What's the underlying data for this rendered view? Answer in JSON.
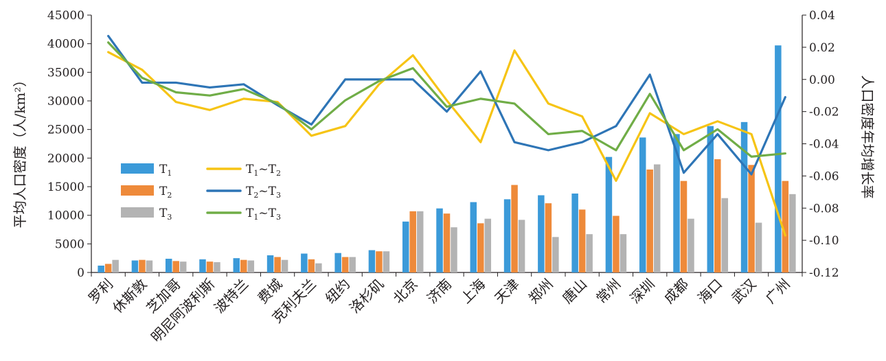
{
  "chart_data": {
    "type": "bar",
    "categories": [
      "罗利",
      "休斯敦",
      "芝加哥",
      "明尼阿波利斯",
      "波特兰",
      "费城",
      "克利夫兰",
      "纽约",
      "洛杉矶",
      "北京",
      "济南",
      "上海",
      "天津",
      "郑州",
      "唐山",
      "常州",
      "深圳",
      "成都",
      "海口",
      "武汉",
      "广州"
    ],
    "bar_series": [
      {
        "name": "T1",
        "color": "#3b9ad9",
        "values": [
          1200,
          2100,
          2400,
          2300,
          2500,
          3000,
          3300,
          3400,
          3900,
          8900,
          11200,
          12300,
          12800,
          13500,
          13800,
          20200,
          23600,
          24200,
          25600,
          26300,
          39700
        ]
      },
      {
        "name": "T2",
        "color": "#ee8a3a",
        "values": [
          1500,
          2200,
          2000,
          1900,
          2200,
          2700,
          2300,
          2700,
          3700,
          10700,
          10300,
          8600,
          15300,
          12100,
          11000,
          9900,
          18000,
          16000,
          19800,
          18800,
          16000
        ]
      },
      {
        "name": "T3",
        "color": "#b3b3b3",
        "values": [
          2200,
          2100,
          1900,
          1800,
          2100,
          2200,
          1600,
          2700,
          3700,
          10700,
          7900,
          9400,
          9200,
          6200,
          6700,
          6700,
          18900,
          9400,
          13000,
          8700,
          13700
        ]
      }
    ],
    "line_series": [
      {
        "name": "T1~T2",
        "color": "#f6c415",
        "values": [
          0.017,
          0.006,
          -0.014,
          -0.019,
          -0.012,
          -0.014,
          -0.035,
          -0.029,
          -0.003,
          0.015,
          -0.013,
          -0.039,
          0.018,
          -0.015,
          -0.023,
          -0.063,
          -0.021,
          -0.034,
          -0.026,
          -0.034,
          -0.097
        ]
      },
      {
        "name": "T2~T3",
        "color": "#2e75b6",
        "values": [
          0.027,
          -0.002,
          -0.002,
          -0.005,
          -0.003,
          -0.016,
          -0.028,
          0,
          0,
          0,
          -0.02,
          0.005,
          -0.039,
          -0.044,
          -0.039,
          -0.029,
          0.003,
          -0.058,
          -0.034,
          -0.059,
          -0.011
        ]
      },
      {
        "name": "T1~T3",
        "color": "#70ad47",
        "values": [
          0.023,
          0.001,
          -0.008,
          -0.01,
          -0.006,
          -0.015,
          -0.031,
          -0.013,
          -0.001,
          0.007,
          -0.017,
          -0.012,
          -0.015,
          -0.034,
          -0.032,
          -0.044,
          -0.009,
          -0.044,
          -0.031,
          -0.048,
          -0.046
        ]
      }
    ],
    "legend": [
      {
        "base": "T",
        "sub": "1",
        "mid": "",
        "base2": "",
        "sub2": "",
        "color": "#3b9ad9",
        "kind": "bar"
      },
      {
        "base": "T",
        "sub": "1",
        "mid": "~T",
        "base2": "",
        "sub2": "2",
        "color": "#f6c415",
        "kind": "line"
      },
      {
        "base": "T",
        "sub": "2",
        "mid": "",
        "base2": "",
        "sub2": "",
        "color": "#ee8a3a",
        "kind": "bar"
      },
      {
        "base": "T",
        "sub": "2",
        "mid": "~T",
        "base2": "",
        "sub2": "3",
        "color": "#2e75b6",
        "kind": "line"
      },
      {
        "base": "T",
        "sub": "3",
        "mid": "",
        "base2": "",
        "sub2": "",
        "color": "#b3b3b3",
        "kind": "bar"
      },
      {
        "base": "T",
        "sub": "1",
        "mid": "~T",
        "base2": "",
        "sub2": "3",
        "color": "#70ad47",
        "kind": "line"
      }
    ],
    "y_left": {
      "label": "平均人口密度（人/km²）",
      "min": 0,
      "max": 45000,
      "ticks": [
        0,
        5000,
        10000,
        15000,
        20000,
        25000,
        30000,
        35000,
        40000,
        45000
      ]
    },
    "y_right": {
      "label": "人口密度年均增长率",
      "min": -0.12,
      "max": 0.04,
      "ticks": [
        "-0.12",
        "-0.10",
        "-0.08",
        "-0.06",
        "-0.04",
        "-0.02",
        "0.00",
        "0.02",
        "0.04"
      ]
    },
    "grid": false,
    "legend_position": "middle-left"
  }
}
